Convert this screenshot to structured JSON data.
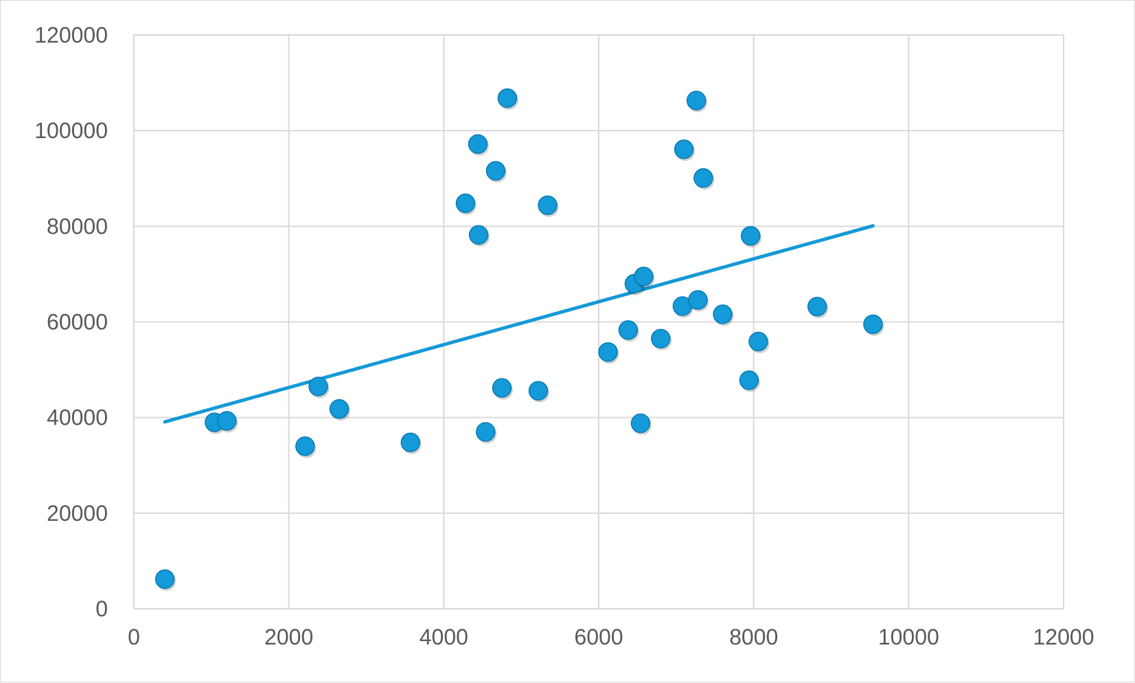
{
  "chart_data": {
    "type": "scatter",
    "title": "",
    "xlabel": "",
    "ylabel": "",
    "xlim": [
      0,
      12000
    ],
    "ylim": [
      0,
      120000
    ],
    "x_ticks": [
      "0",
      "2000",
      "4000",
      "6000",
      "8000",
      "10000",
      "12000"
    ],
    "y_ticks": [
      "0",
      "20000",
      "40000",
      "60000",
      "80000",
      "100000",
      "120000"
    ],
    "grid": true,
    "legend": false,
    "colors": {
      "points": "#149ad8",
      "trendline": "#1499d6",
      "grid": "#d9d9d9"
    },
    "series": [
      {
        "points": [
          [
            400,
            6200
          ],
          [
            1040,
            39000
          ],
          [
            1200,
            39300
          ],
          [
            2210,
            34000
          ],
          [
            2380,
            46500
          ],
          [
            2650,
            41800
          ],
          [
            3570,
            34800
          ],
          [
            4280,
            84800
          ],
          [
            4440,
            97200
          ],
          [
            4450,
            78200
          ],
          [
            4540,
            37000
          ],
          [
            4670,
            91600
          ],
          [
            4750,
            46200
          ],
          [
            4820,
            106800
          ],
          [
            5220,
            45600
          ],
          [
            5340,
            84400
          ],
          [
            6120,
            53700
          ],
          [
            6380,
            58300
          ],
          [
            6460,
            68000
          ],
          [
            6540,
            38800
          ],
          [
            6580,
            69500
          ],
          [
            6800,
            56500
          ],
          [
            7080,
            63300
          ],
          [
            7100,
            96100
          ],
          [
            7260,
            106300
          ],
          [
            7280,
            64600
          ],
          [
            7350,
            90100
          ],
          [
            7600,
            61600
          ],
          [
            7940,
            47800
          ],
          [
            7960,
            78000
          ],
          [
            8060,
            55900
          ],
          [
            8820,
            63200
          ],
          [
            9540,
            59500
          ]
        ]
      }
    ],
    "trendline": {
      "type": "linear",
      "x": [
        400,
        9540
      ],
      "y": [
        39100,
        80100
      ]
    }
  }
}
